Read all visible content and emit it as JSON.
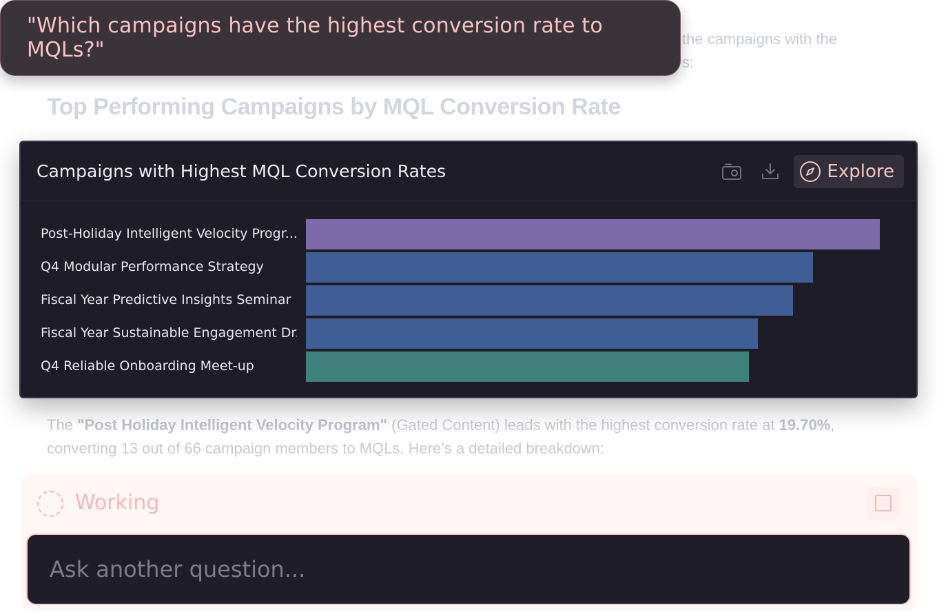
{
  "question": {
    "text": "\"Which campaigns have the highest conversion rate to MQLs?\""
  },
  "background": {
    "intro_line1": "the campaigns with the",
    "intro_line2": "s:",
    "heading": "Top Performing Campaigns by MQL Conversion Rate",
    "paragraph": {
      "prefix": "The ",
      "campaign": "\"Post Holiday Intelligent Velocity Program\"",
      "middle": " (Gated Content) leads with the highest conversion rate at ",
      "rate": "19.70%",
      "suffix": ", converting 13 out of 66 campaign members to MQLs. Here’s a detailed breakdown:"
    }
  },
  "chart_card": {
    "title": "Campaigns with Highest MQL Conversion Rates",
    "actions": {
      "screenshot_icon": "camera-icon",
      "download_icon": "download-icon",
      "explore_icon": "compass-icon",
      "explore_label": "Explore"
    }
  },
  "chart_data": {
    "type": "bar",
    "orientation": "horizontal",
    "title": "Campaigns with Highest MQL Conversion Rates",
    "categories": [
      "Post-Holiday Intelligent Velocity Progr...",
      "Q4 Modular Performance Strategy",
      "Fiscal Year Predictive Insights Seminar",
      "Fiscal Year Sustainable Engagement Dr...",
      "Q4 Reliable Onboarding Meet-up"
    ],
    "values": [
      19.7,
      17.4,
      16.7,
      15.5,
      15.2
    ],
    "colors": [
      "#7d6aa9",
      "#3f5f96",
      "#3f5f96",
      "#3f5f96",
      "#40807a"
    ],
    "xlim": [
      0,
      20.8
    ],
    "grid": false,
    "legend": "none"
  },
  "status": {
    "label": "Working",
    "spinner_icon": "spinner-icon",
    "stop_icon": "stop-icon"
  },
  "ask_input": {
    "placeholder": "Ask another question...",
    "value": ""
  },
  "colors": {
    "card_bg": "#1e1d27",
    "accent_pink": "#f4c3c3",
    "bubble_bg": "#3b333a"
  }
}
